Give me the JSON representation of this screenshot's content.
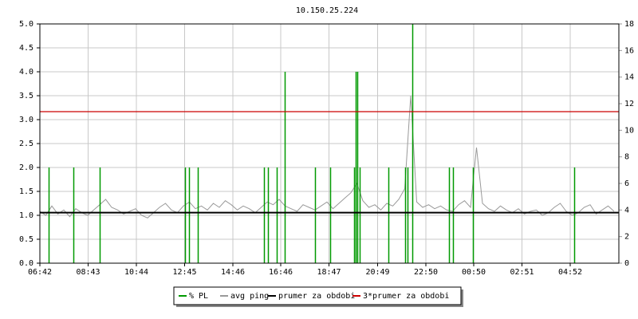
{
  "chart_data": {
    "type": "ping-monitor",
    "title": "10.150.25.224",
    "xlim": [
      0,
      1452
    ],
    "xticks": [
      {
        "value": 0,
        "label": "06:42"
      },
      {
        "value": 121,
        "label": "08:43"
      },
      {
        "value": 242,
        "label": "10:44"
      },
      {
        "value": 363,
        "label": "12:45"
      },
      {
        "value": 484,
        "label": "14:46"
      },
      {
        "value": 604,
        "label": "16:46"
      },
      {
        "value": 725,
        "label": "18:47"
      },
      {
        "value": 847,
        "label": "20:49"
      },
      {
        "value": 968,
        "label": "22:50"
      },
      {
        "value": 1088,
        "label": "00:50"
      },
      {
        "value": 1209,
        "label": "02:51"
      },
      {
        "value": 1330,
        "label": "04:52"
      }
    ],
    "ylim": [
      0,
      5
    ],
    "yticks": [
      {
        "value": 0,
        "label": "0.0"
      },
      0.5,
      {
        "value": 1,
        "label": "1.0"
      },
      1.5,
      {
        "value": 2,
        "label": "2.0"
      },
      2.5,
      {
        "value": 3,
        "label": "3.0"
      },
      3.5,
      {
        "value": 4,
        "label": "4.0"
      },
      4.5,
      {
        "value": 5,
        "label": "5.0"
      }
    ],
    "y2lim": [
      0,
      18
    ],
    "y2ticks": [
      0,
      2,
      4,
      6,
      8,
      10,
      12,
      14,
      16,
      18
    ],
    "grid": true,
    "series": [
      {
        "name": "% PL",
        "color": "#009900",
        "kind": "spikes",
        "x": [
          22,
          84,
          150,
          364,
          374,
          396,
          562,
          572,
          594,
          614,
          690,
          728,
          788,
          792,
          796,
          802,
          874,
          916,
          922,
          934,
          1026,
          1036,
          1086,
          1340
        ],
        "values": [
          2,
          2,
          2,
          2,
          2,
          2,
          2,
          2,
          2,
          4,
          2,
          2,
          2,
          4,
          4,
          2,
          2,
          2,
          2,
          5,
          2,
          2,
          2,
          2
        ]
      },
      {
        "name": "avg ping",
        "color": "#999999",
        "kind": "line",
        "axis": "y2",
        "x": [
          0,
          15,
          30,
          45,
          60,
          75,
          90,
          105,
          120,
          135,
          150,
          165,
          180,
          195,
          210,
          225,
          240,
          255,
          270,
          285,
          300,
          315,
          330,
          345,
          360,
          375,
          390,
          405,
          420,
          435,
          450,
          465,
          480,
          495,
          510,
          525,
          540,
          555,
          570,
          585,
          600,
          615,
          630,
          645,
          660,
          675,
          690,
          705,
          720,
          735,
          750,
          765,
          780,
          795,
          810,
          825,
          840,
          855,
          870,
          885,
          900,
          915,
          930,
          945,
          960,
          975,
          990,
          1005,
          1020,
          1035,
          1050,
          1065,
          1080,
          1095,
          1110,
          1125,
          1140,
          1155,
          1170,
          1185,
          1200,
          1215,
          1230,
          1245,
          1260,
          1275,
          1290,
          1305,
          1320,
          1335,
          1350,
          1365,
          1380,
          1395,
          1410,
          1425,
          1440
        ],
        "values": [
          3.9,
          3.6,
          4.3,
          3.7,
          4.0,
          3.5,
          4.1,
          3.8,
          3.6,
          4.0,
          4.4,
          4.8,
          4.2,
          4.0,
          3.7,
          3.9,
          4.1,
          3.6,
          3.4,
          3.8,
          4.2,
          4.5,
          4.0,
          3.8,
          4.3,
          4.6,
          4.1,
          4.3,
          4.0,
          4.5,
          4.2,
          4.7,
          4.4,
          4.0,
          4.3,
          4.1,
          3.8,
          4.2,
          4.6,
          4.4,
          4.8,
          4.3,
          4.1,
          3.9,
          4.4,
          4.2,
          4.0,
          4.3,
          4.6,
          4.1,
          4.5,
          4.9,
          5.3,
          6.0,
          4.7,
          4.2,
          4.4,
          4.0,
          4.5,
          4.3,
          4.8,
          5.6,
          12.6,
          4.6,
          4.2,
          4.4,
          4.1,
          4.3,
          4.0,
          3.9,
          4.4,
          4.7,
          4.2,
          8.7,
          4.5,
          4.1,
          3.9,
          4.3,
          4.0,
          3.8,
          4.1,
          3.7,
          3.9,
          4.0,
          3.6,
          3.8,
          4.2,
          4.5,
          3.9,
          3.6,
          3.8,
          4.2,
          4.4,
          3.7,
          4.0,
          4.3,
          3.9
        ]
      },
      {
        "name": "prumer za obdobi",
        "color": "#000000",
        "kind": "hline",
        "axis": "y2",
        "values": [
          3.8
        ]
      },
      {
        "name": "3*prumer za obdobi",
        "color": "#cc0000",
        "kind": "hline",
        "axis": "y2",
        "values": [
          11.4
        ]
      }
    ]
  }
}
